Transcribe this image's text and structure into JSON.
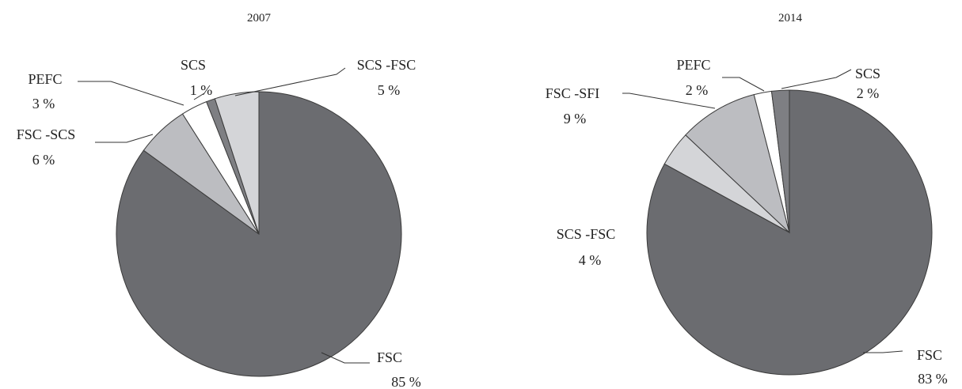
{
  "chart_data": [
    {
      "type": "pie",
      "title": "2007",
      "slices": [
        {
          "label": "FSC",
          "value": 85,
          "value_text": "85 %",
          "color": "#6b6c70"
        },
        {
          "label": "FSC -SCS",
          "value": 6,
          "value_text": "6 %",
          "color": "#bcbdc1"
        },
        {
          "label": "PEFC",
          "value": 3,
          "value_text": "3 %",
          "color": "#ffffff"
        },
        {
          "label": "SCS",
          "value": 1,
          "value_text": "1 %",
          "color": "#7e7f83"
        },
        {
          "label": "SCS -FSC",
          "value": 5,
          "value_text": "5 %",
          "color": "#d4d5d8"
        }
      ]
    },
    {
      "type": "pie",
      "title": "2014",
      "slices": [
        {
          "label": "FSC",
          "value": 83,
          "value_text": "83 %",
          "color": "#6b6c70"
        },
        {
          "label": "SCS -FSC",
          "value": 4,
          "value_text": "4 %",
          "color": "#d4d5d8"
        },
        {
          "label": "FSC -SFI",
          "value": 9,
          "value_text": "9 %",
          "color": "#bcbdc1"
        },
        {
          "label": "PEFC",
          "value": 2,
          "value_text": "2 %",
          "color": "#ffffff"
        },
        {
          "label": "SCS",
          "value": 2,
          "value_text": "2 %",
          "color": "#7e7f83"
        }
      ]
    }
  ]
}
